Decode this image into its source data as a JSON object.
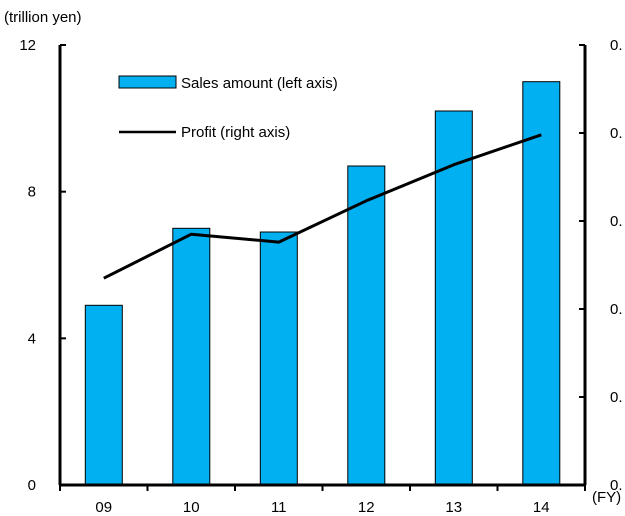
{
  "chart_data": {
    "type": "bar+line",
    "unit_label": "(trillion yen)",
    "x_unit_label": "(FY)",
    "categories": [
      "09",
      "10",
      "11",
      "12",
      "13",
      "14"
    ],
    "left_axis": {
      "ticks": [
        "0",
        "4",
        "8",
        "12"
      ],
      "ylim": [
        0,
        12
      ]
    },
    "right_axis": {
      "ticks": [
        "0.",
        "0.",
        "0.",
        "0.",
        "0.",
        "0."
      ],
      "ylim": [
        0,
        5
      ]
    },
    "series": [
      {
        "name": "Sales amount (left axis)",
        "type": "bar",
        "axis": "left",
        "color": "#00B0F0",
        "values": [
          4.9,
          7.0,
          6.9,
          8.7,
          10.2,
          11.0
        ]
      },
      {
        "name": "Profit (right axis)",
        "type": "line",
        "axis": "right",
        "color": "#000000",
        "values": [
          2.35,
          2.85,
          2.76,
          3.23,
          3.64,
          3.98
        ]
      }
    ],
    "legend_position": "top-left",
    "grid": false
  }
}
